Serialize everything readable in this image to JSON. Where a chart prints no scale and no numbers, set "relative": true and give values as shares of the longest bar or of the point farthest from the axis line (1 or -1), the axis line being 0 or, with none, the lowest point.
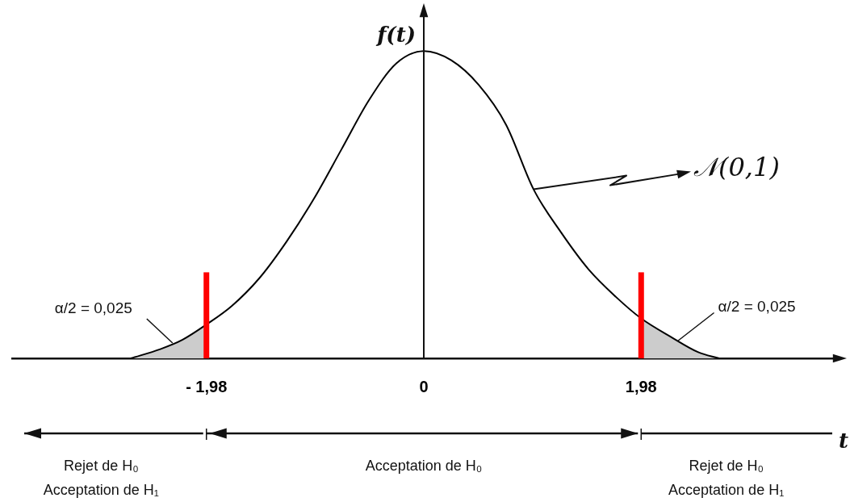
{
  "chart_data": {
    "type": "line",
    "relative": true,
    "xlabel": "t",
    "ylabel": "f(t)",
    "x": [
      -2.67,
      -2.4,
      -2.2,
      -1.98,
      -1.75,
      -1.5,
      -1.25,
      -1.0,
      -0.75,
      -0.5,
      -0.25,
      0,
      0.25,
      0.5,
      0.75,
      1.0,
      1.25,
      1.5,
      1.75,
      1.98,
      2.25,
      2.5,
      2.69
    ],
    "series": [
      {
        "color": "#000000",
        "values": [
          0,
          0.03,
          0.06,
          0.11,
          0.17,
          0.26,
          0.38,
          0.52,
          0.68,
          0.84,
          0.96,
          1,
          0.97,
          0.89,
          0.76,
          0.55,
          0.41,
          0.29,
          0.2,
          0.13,
          0.07,
          0.02,
          0
        ]
      },
      {
        "type": "area",
        "name": "α/2 = 0,025",
        "color": "#cccccc",
        "x": [
          -2.67,
          -2.4,
          -2.2,
          -1.98
        ],
        "values": [
          0,
          0.03,
          0.06,
          0.11
        ]
      },
      {
        "type": "area",
        "name": "α/2 = 0,025",
        "color": "#cccccc",
        "x": [
          1.98,
          2.25,
          2.5,
          2.69
        ],
        "values": [
          0.13,
          0.07,
          0.02,
          0
        ]
      }
    ],
    "xlim": [
      -3.75,
      3.75
    ],
    "xticks": [
      {
        "value": -1.98,
        "label": "- 1,98"
      },
      0,
      {
        "value": 1.98,
        "label": "1,98"
      }
    ],
    "ref_lines": [
      {
        "axis": "x",
        "value": -1.98,
        "color": "#ff0000"
      },
      {
        "axis": "x",
        "value": 1.98,
        "color": "#ff0000"
      }
    ],
    "annotations": [
      {
        "text": "𝒩(0,1)",
        "x": 1.0,
        "y": 0.55
      },
      "Rejet de H₀\nAcceptation de H₁",
      "Acceptation de H₀",
      "Rejet de H₀\nAcceptation de H₁"
    ]
  }
}
